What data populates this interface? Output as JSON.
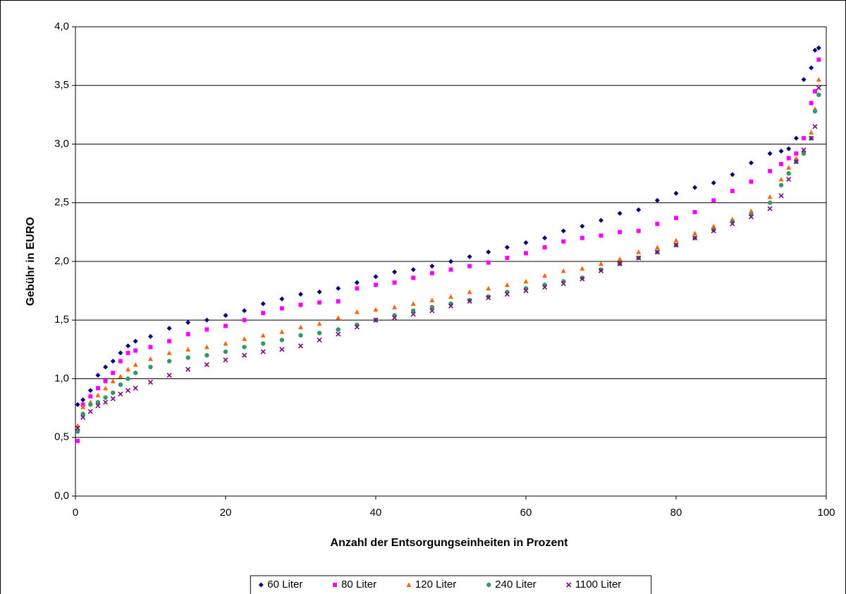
{
  "chart_data": {
    "type": "scatter",
    "x_label": "Anzahl der Entsorgungseinheiten in Prozent",
    "y_label": "Gebühr in EURO",
    "x": [
      0.3,
      1,
      2,
      3,
      4,
      5,
      6,
      7,
      8,
      10,
      12.5,
      15,
      17.5,
      20,
      22.5,
      25,
      27.5,
      30,
      32.5,
      35,
      37.5,
      40,
      42.5,
      45,
      47.5,
      50,
      52.5,
      55,
      57.5,
      60,
      62.5,
      65,
      67.5,
      70,
      72.5,
      75,
      77.5,
      80,
      82.5,
      85,
      87.5,
      90,
      92.5,
      94,
      95,
      96,
      97,
      98,
      98.5,
      99
    ],
    "series": [
      {
        "name": "60 Liter",
        "color": "#000080",
        "marker": "diamond",
        "values": [
          0.78,
          0.82,
          0.9,
          1.03,
          1.1,
          1.15,
          1.22,
          1.28,
          1.32,
          1.36,
          1.43,
          1.48,
          1.5,
          1.54,
          1.58,
          1.64,
          1.68,
          1.72,
          1.74,
          1.77,
          1.82,
          1.87,
          1.91,
          1.93,
          1.96,
          2.0,
          2.04,
          2.08,
          2.12,
          2.16,
          2.2,
          2.26,
          2.3,
          2.35,
          2.41,
          2.44,
          2.52,
          2.58,
          2.63,
          2.67,
          2.74,
          2.84,
          2.92,
          2.94,
          2.96,
          3.05,
          3.55,
          3.65,
          3.8,
          3.82
        ]
      },
      {
        "name": "80 Liter",
        "color": "#ff00ff",
        "marker": "square",
        "values": [
          0.47,
          0.78,
          0.85,
          0.92,
          0.98,
          1.05,
          1.15,
          1.22,
          1.24,
          1.27,
          1.32,
          1.38,
          1.42,
          1.45,
          1.5,
          1.56,
          1.6,
          1.63,
          1.65,
          1.66,
          1.77,
          1.8,
          1.82,
          1.86,
          1.9,
          1.93,
          1.96,
          1.99,
          2.03,
          2.07,
          2.12,
          2.17,
          2.2,
          2.22,
          2.25,
          2.26,
          2.32,
          2.37,
          2.42,
          2.52,
          2.6,
          2.68,
          2.77,
          2.83,
          2.88,
          2.92,
          3.05,
          3.35,
          3.45,
          3.72
        ]
      },
      {
        "name": "120 Liter",
        "color": "#ff6600",
        "marker": "triangle",
        "values": [
          0.6,
          0.76,
          0.8,
          0.86,
          0.92,
          0.98,
          1.02,
          1.08,
          1.12,
          1.17,
          1.22,
          1.25,
          1.27,
          1.3,
          1.34,
          1.37,
          1.4,
          1.44,
          1.47,
          1.52,
          1.57,
          1.59,
          1.61,
          1.64,
          1.67,
          1.7,
          1.74,
          1.77,
          1.8,
          1.83,
          1.88,
          1.92,
          1.94,
          1.98,
          2.02,
          2.08,
          2.12,
          2.18,
          2.24,
          2.3,
          2.36,
          2.43,
          2.55,
          2.7,
          2.8,
          2.88,
          2.93,
          3.1,
          3.3,
          3.55
        ]
      },
      {
        "name": "240 Liter",
        "color": "#339966",
        "marker": "circle",
        "values": [
          0.55,
          0.7,
          0.78,
          0.8,
          0.84,
          0.88,
          0.95,
          1.0,
          1.05,
          1.1,
          1.15,
          1.18,
          1.2,
          1.23,
          1.27,
          1.3,
          1.33,
          1.37,
          1.39,
          1.42,
          1.46,
          1.5,
          1.54,
          1.58,
          1.61,
          1.64,
          1.67,
          1.7,
          1.74,
          1.77,
          1.8,
          1.83,
          1.86,
          1.93,
          1.98,
          2.03,
          2.08,
          2.14,
          2.2,
          2.27,
          2.34,
          2.4,
          2.5,
          2.65,
          2.75,
          2.85,
          2.92,
          3.05,
          3.28,
          3.42
        ]
      },
      {
        "name": "1100 Liter",
        "color": "#800080",
        "marker": "x",
        "values": [
          0.58,
          0.67,
          0.72,
          0.77,
          0.8,
          0.83,
          0.87,
          0.9,
          0.92,
          0.97,
          1.03,
          1.08,
          1.12,
          1.16,
          1.2,
          1.23,
          1.25,
          1.28,
          1.33,
          1.38,
          1.44,
          1.5,
          1.52,
          1.55,
          1.58,
          1.62,
          1.66,
          1.69,
          1.72,
          1.75,
          1.78,
          1.81,
          1.85,
          1.92,
          1.98,
          2.03,
          2.08,
          2.14,
          2.2,
          2.26,
          2.32,
          2.38,
          2.45,
          2.56,
          2.7,
          2.85,
          2.95,
          3.05,
          3.15,
          3.48
        ]
      }
    ],
    "xlim": [
      0,
      100
    ],
    "xticks": [
      0,
      20,
      40,
      60,
      80,
      100
    ],
    "ylim": [
      0,
      4
    ],
    "yticks": [
      {
        "value": 0,
        "label": "0,0"
      },
      {
        "value": 0.5,
        "label": "0,5"
      },
      {
        "value": 1,
        "label": "1,0"
      },
      {
        "value": 1.5,
        "label": "1,5"
      },
      {
        "value": 2,
        "label": "2,0"
      },
      {
        "value": 2.5,
        "label": "2,5"
      },
      {
        "value": 3,
        "label": "3,0"
      },
      {
        "value": 3.5,
        "label": "3,5"
      },
      {
        "value": 4,
        "label": "4,0"
      }
    ],
    "grid": true,
    "legend": "bottom"
  }
}
